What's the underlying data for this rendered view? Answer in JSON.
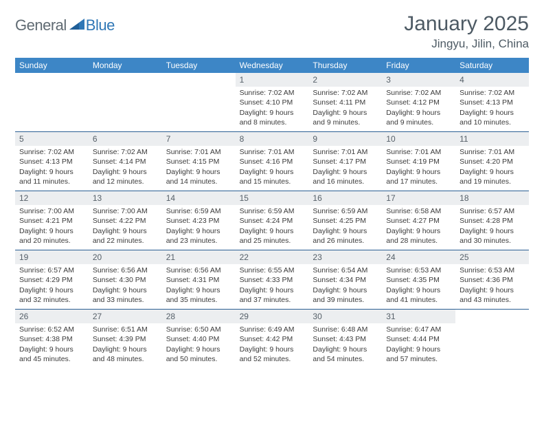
{
  "brand": {
    "part1": "General",
    "part2": "Blue"
  },
  "title": "January 2025",
  "location": "Jingyu, Jilin, China",
  "colors": {
    "header_bg": "#3d86c6",
    "header_text": "#ffffff",
    "daynum_bg": "#eceef0",
    "week_border": "#2a5f93",
    "title_color": "#4d5a64",
    "logo_gray": "#5f6a72",
    "logo_blue": "#2f77b6",
    "body_text": "#3a3a3a",
    "page_bg": "#ffffff"
  },
  "typography": {
    "title_fontsize": 30,
    "location_fontsize": 17,
    "dayname_fontsize": 12,
    "daynum_fontsize": 12,
    "cell_fontsize": 10.5,
    "logo_fontsize": 22
  },
  "daynames": [
    "Sunday",
    "Monday",
    "Tuesday",
    "Wednesday",
    "Thursday",
    "Friday",
    "Saturday"
  ],
  "weeks": [
    [
      {
        "num": "",
        "sunrise": "",
        "sunset": "",
        "daylight": ""
      },
      {
        "num": "",
        "sunrise": "",
        "sunset": "",
        "daylight": ""
      },
      {
        "num": "",
        "sunrise": "",
        "sunset": "",
        "daylight": ""
      },
      {
        "num": "1",
        "sunrise": "Sunrise: 7:02 AM",
        "sunset": "Sunset: 4:10 PM",
        "daylight": "Daylight: 9 hours and 8 minutes."
      },
      {
        "num": "2",
        "sunrise": "Sunrise: 7:02 AM",
        "sunset": "Sunset: 4:11 PM",
        "daylight": "Daylight: 9 hours and 9 minutes."
      },
      {
        "num": "3",
        "sunrise": "Sunrise: 7:02 AM",
        "sunset": "Sunset: 4:12 PM",
        "daylight": "Daylight: 9 hours and 9 minutes."
      },
      {
        "num": "4",
        "sunrise": "Sunrise: 7:02 AM",
        "sunset": "Sunset: 4:13 PM",
        "daylight": "Daylight: 9 hours and 10 minutes."
      }
    ],
    [
      {
        "num": "5",
        "sunrise": "Sunrise: 7:02 AM",
        "sunset": "Sunset: 4:13 PM",
        "daylight": "Daylight: 9 hours and 11 minutes."
      },
      {
        "num": "6",
        "sunrise": "Sunrise: 7:02 AM",
        "sunset": "Sunset: 4:14 PM",
        "daylight": "Daylight: 9 hours and 12 minutes."
      },
      {
        "num": "7",
        "sunrise": "Sunrise: 7:01 AM",
        "sunset": "Sunset: 4:15 PM",
        "daylight": "Daylight: 9 hours and 14 minutes."
      },
      {
        "num": "8",
        "sunrise": "Sunrise: 7:01 AM",
        "sunset": "Sunset: 4:16 PM",
        "daylight": "Daylight: 9 hours and 15 minutes."
      },
      {
        "num": "9",
        "sunrise": "Sunrise: 7:01 AM",
        "sunset": "Sunset: 4:17 PM",
        "daylight": "Daylight: 9 hours and 16 minutes."
      },
      {
        "num": "10",
        "sunrise": "Sunrise: 7:01 AM",
        "sunset": "Sunset: 4:19 PM",
        "daylight": "Daylight: 9 hours and 17 minutes."
      },
      {
        "num": "11",
        "sunrise": "Sunrise: 7:01 AM",
        "sunset": "Sunset: 4:20 PM",
        "daylight": "Daylight: 9 hours and 19 minutes."
      }
    ],
    [
      {
        "num": "12",
        "sunrise": "Sunrise: 7:00 AM",
        "sunset": "Sunset: 4:21 PM",
        "daylight": "Daylight: 9 hours and 20 minutes."
      },
      {
        "num": "13",
        "sunrise": "Sunrise: 7:00 AM",
        "sunset": "Sunset: 4:22 PM",
        "daylight": "Daylight: 9 hours and 22 minutes."
      },
      {
        "num": "14",
        "sunrise": "Sunrise: 6:59 AM",
        "sunset": "Sunset: 4:23 PM",
        "daylight": "Daylight: 9 hours and 23 minutes."
      },
      {
        "num": "15",
        "sunrise": "Sunrise: 6:59 AM",
        "sunset": "Sunset: 4:24 PM",
        "daylight": "Daylight: 9 hours and 25 minutes."
      },
      {
        "num": "16",
        "sunrise": "Sunrise: 6:59 AM",
        "sunset": "Sunset: 4:25 PM",
        "daylight": "Daylight: 9 hours and 26 minutes."
      },
      {
        "num": "17",
        "sunrise": "Sunrise: 6:58 AM",
        "sunset": "Sunset: 4:27 PM",
        "daylight": "Daylight: 9 hours and 28 minutes."
      },
      {
        "num": "18",
        "sunrise": "Sunrise: 6:57 AM",
        "sunset": "Sunset: 4:28 PM",
        "daylight": "Daylight: 9 hours and 30 minutes."
      }
    ],
    [
      {
        "num": "19",
        "sunrise": "Sunrise: 6:57 AM",
        "sunset": "Sunset: 4:29 PM",
        "daylight": "Daylight: 9 hours and 32 minutes."
      },
      {
        "num": "20",
        "sunrise": "Sunrise: 6:56 AM",
        "sunset": "Sunset: 4:30 PM",
        "daylight": "Daylight: 9 hours and 33 minutes."
      },
      {
        "num": "21",
        "sunrise": "Sunrise: 6:56 AM",
        "sunset": "Sunset: 4:31 PM",
        "daylight": "Daylight: 9 hours and 35 minutes."
      },
      {
        "num": "22",
        "sunrise": "Sunrise: 6:55 AM",
        "sunset": "Sunset: 4:33 PM",
        "daylight": "Daylight: 9 hours and 37 minutes."
      },
      {
        "num": "23",
        "sunrise": "Sunrise: 6:54 AM",
        "sunset": "Sunset: 4:34 PM",
        "daylight": "Daylight: 9 hours and 39 minutes."
      },
      {
        "num": "24",
        "sunrise": "Sunrise: 6:53 AM",
        "sunset": "Sunset: 4:35 PM",
        "daylight": "Daylight: 9 hours and 41 minutes."
      },
      {
        "num": "25",
        "sunrise": "Sunrise: 6:53 AM",
        "sunset": "Sunset: 4:36 PM",
        "daylight": "Daylight: 9 hours and 43 minutes."
      }
    ],
    [
      {
        "num": "26",
        "sunrise": "Sunrise: 6:52 AM",
        "sunset": "Sunset: 4:38 PM",
        "daylight": "Daylight: 9 hours and 45 minutes."
      },
      {
        "num": "27",
        "sunrise": "Sunrise: 6:51 AM",
        "sunset": "Sunset: 4:39 PM",
        "daylight": "Daylight: 9 hours and 48 minutes."
      },
      {
        "num": "28",
        "sunrise": "Sunrise: 6:50 AM",
        "sunset": "Sunset: 4:40 PM",
        "daylight": "Daylight: 9 hours and 50 minutes."
      },
      {
        "num": "29",
        "sunrise": "Sunrise: 6:49 AM",
        "sunset": "Sunset: 4:42 PM",
        "daylight": "Daylight: 9 hours and 52 minutes."
      },
      {
        "num": "30",
        "sunrise": "Sunrise: 6:48 AM",
        "sunset": "Sunset: 4:43 PM",
        "daylight": "Daylight: 9 hours and 54 minutes."
      },
      {
        "num": "31",
        "sunrise": "Sunrise: 6:47 AM",
        "sunset": "Sunset: 4:44 PM",
        "daylight": "Daylight: 9 hours and 57 minutes."
      },
      {
        "num": "",
        "sunrise": "",
        "sunset": "",
        "daylight": ""
      }
    ]
  ]
}
